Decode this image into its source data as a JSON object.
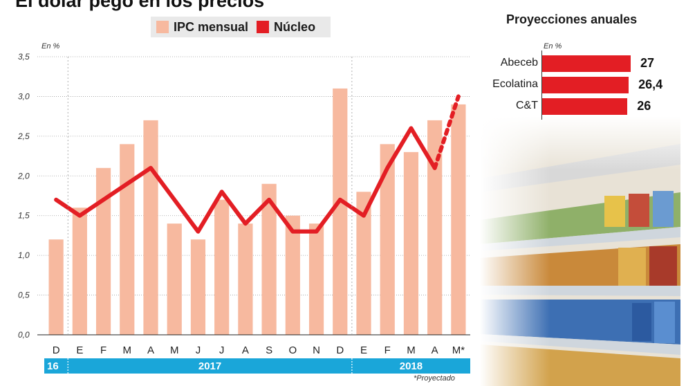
{
  "headline": "El dólar pegó en los precios",
  "legend": {
    "ipc": "IPC mensual",
    "nucleo": "Núcleo"
  },
  "unit": "En %",
  "note": "*Proyectado",
  "colors": {
    "ipc": "#f7b99f",
    "nucleo": "#e31e24",
    "year_band": "#1aa6d9"
  },
  "chart_data": {
    "type": "bar",
    "categories": [
      "D",
      "E",
      "F",
      "M",
      "A",
      "M",
      "J",
      "J",
      "A",
      "S",
      "O",
      "N",
      "D",
      "E",
      "F",
      "M",
      "A",
      "M*"
    ],
    "years": [
      {
        "label": "16",
        "span": 1
      },
      {
        "label": "2017",
        "span": 12
      },
      {
        "label": "2018",
        "span": 5
      }
    ],
    "series": [
      {
        "name": "IPC mensual",
        "type": "bar",
        "values": [
          1.2,
          1.6,
          2.1,
          2.4,
          2.7,
          1.4,
          1.2,
          1.7,
          1.4,
          1.9,
          1.5,
          1.4,
          3.1,
          1.8,
          2.4,
          2.3,
          2.7,
          2.9
        ]
      },
      {
        "name": "Núcleo",
        "type": "line",
        "values": [
          1.7,
          1.5,
          1.7,
          1.9,
          2.1,
          1.7,
          1.3,
          1.8,
          1.4,
          1.7,
          1.3,
          1.3,
          1.7,
          1.5,
          2.1,
          2.6,
          2.1,
          3.0
        ],
        "projected_from_index": 16
      }
    ],
    "ylim": [
      0,
      3.5
    ],
    "yticks": [
      "0,0",
      "0,5",
      "1,0",
      "1,5",
      "2,0",
      "2,5",
      "3,0",
      "3,5"
    ],
    "grid": true
  },
  "projections": {
    "title": "Proyecciones anuales",
    "unit": "En %",
    "chart_data": {
      "type": "bar",
      "orientation": "horizontal",
      "categories": [
        "Abeceb",
        "Ecolatina",
        "C&T"
      ],
      "values": [
        27,
        26.4,
        26
      ],
      "labels": [
        "27",
        "26,4",
        "26"
      ]
    }
  }
}
